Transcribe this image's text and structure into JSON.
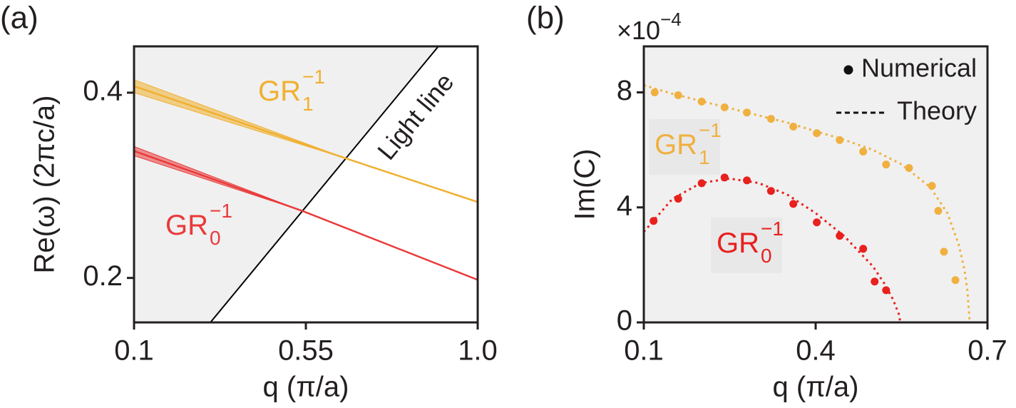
{
  "chart_data": [
    {
      "type": "line",
      "panel_label": "(a)",
      "xlabel": "q (π/a)",
      "ylabel": "Re(ω) (2πc/a)",
      "xlim": [
        0.1,
        1.0
      ],
      "ylim": [
        0.152,
        0.45
      ],
      "xticks": [
        0.1,
        0.55,
        {
          "value": 1.0,
          "label": "1.0"
        }
      ],
      "yticks": [
        0.2,
        0.4
      ],
      "shade_color": "#f0f0f0",
      "light_line": {
        "text": "Light line",
        "color": "#000000",
        "x": [
          0.3,
          0.897
        ],
        "values": [
          0.152,
          0.45
        ]
      },
      "series": [
        {
          "label": {
            "text": "GR",
            "sub": "1",
            "sup": "−1"
          },
          "color": "#f0b030",
          "x": [
            0.1,
            0.655,
            1.0
          ],
          "values": [
            0.407,
            0.329,
            0.282
          ],
          "spread": [
            0.007,
            0,
            0
          ]
        },
        {
          "label": {
            "text": "GR",
            "sub": "0",
            "sup": "−1"
          },
          "color": "#ea3a3a",
          "x": [
            0.1,
            0.543,
            1.0
          ],
          "values": [
            0.337,
            0.272,
            0.198
          ],
          "spread": [
            0.005,
            0,
            0
          ]
        }
      ]
    },
    {
      "type": "scatter",
      "panel_label": "(b)",
      "multiplier": {
        "text": "×10",
        "sup": "−4"
      },
      "xlabel": "q (π/a)",
      "ylabel": "Im(C)",
      "xlim": [
        0.1,
        0.7
      ],
      "ylim": [
        0,
        9.6
      ],
      "xticks": [
        0.1,
        0.4,
        0.7
      ],
      "yticks": [
        0,
        4,
        8
      ],
      "background": "#f0f0f0",
      "legend": {
        "position": "upper right",
        "entries": [
          "Numerical",
          "Theory"
        ],
        "color": "#111111"
      },
      "series": [
        {
          "label": {
            "text": "GR",
            "sub": "1",
            "sup": "−1"
          },
          "color": "#f0b040",
          "x": [
            0.119,
            0.16,
            0.201,
            0.241,
            0.28,
            0.322,
            0.361,
            0.402,
            0.442,
            0.483,
            0.523,
            0.563,
            0.603,
            0.614,
            0.624,
            0.644
          ],
          "values": [
            8.0,
            7.9,
            7.68,
            7.48,
            7.3,
            7.08,
            6.81,
            6.58,
            6.34,
            5.94,
            5.49,
            5.37,
            4.75,
            3.88,
            2.46,
            1.47
          ],
          "theory_x": [
            0.1,
            0.15,
            0.2,
            0.25,
            0.3,
            0.35,
            0.4,
            0.45,
            0.5,
            0.55,
            0.6,
            0.63,
            0.65,
            0.66,
            0.665,
            0.669
          ],
          "theory_values": [
            8.25,
            7.95,
            7.7,
            7.45,
            7.2,
            6.95,
            6.65,
            6.35,
            6.0,
            5.5,
            4.7,
            3.8,
            2.7,
            1.8,
            1.1,
            0
          ]
        },
        {
          "label": {
            "text": "GR",
            "sub": "0",
            "sup": "−1"
          },
          "color": "#e8201e",
          "x": [
            0.117,
            0.16,
            0.201,
            0.241,
            0.28,
            0.322,
            0.361,
            0.402,
            0.442,
            0.483,
            0.503,
            0.523
          ],
          "values": [
            3.53,
            4.3,
            4.84,
            5.04,
            4.94,
            4.57,
            4.12,
            3.48,
            3.01,
            2.56,
            1.42,
            1.12
          ],
          "theory_x": [
            0.1,
            0.15,
            0.2,
            0.25,
            0.3,
            0.35,
            0.4,
            0.45,
            0.5,
            0.52,
            0.535,
            0.545,
            0.548
          ],
          "theory_values": [
            3.15,
            4.3,
            4.85,
            5.0,
            4.85,
            4.45,
            3.8,
            3.0,
            1.95,
            1.35,
            0.8,
            0.3,
            0
          ]
        }
      ]
    }
  ]
}
